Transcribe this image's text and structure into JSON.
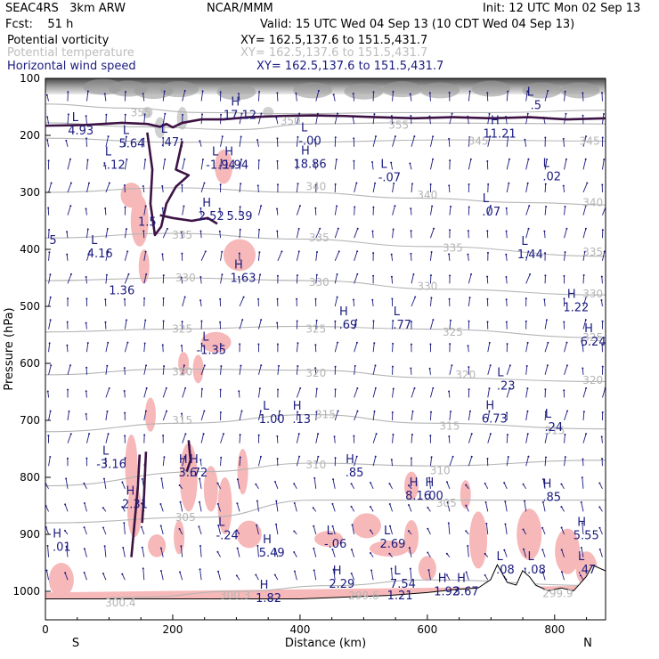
{
  "header": {
    "model": "SEAC4RS   3km ARW",
    "org": "NCAR/MMM",
    "init": "Init: 12 UTC Mon 02 Sep 13",
    "fcst": "Fcst:    51 h",
    "valid": "Valid: 15 UTC Wed 04 Sep 13 (10 CDT Wed 04 Sep 13)"
  },
  "fields": [
    {
      "name": "Potential vorticity",
      "xy": "XY= 162.5,137.6 to 151.5,431.7",
      "color": "#000000"
    },
    {
      "name": "Potential temperature",
      "xy": "XY= 162.5,137.6 to 151.5,431.7",
      "color": "#bdbdbd"
    },
    {
      "name": "Horizontal wind speed",
      "xy": "XY= 162.5,137.6 to 151.5,431.7",
      "color": "#1a1a80"
    }
  ],
  "chart_data": {
    "type": "cross-section",
    "xlabel": "Distance (km)",
    "ylabel": "Pressure (hPa)",
    "xlim": [
      0,
      880
    ],
    "ylim": [
      1050,
      100
    ],
    "x_ticks": [
      0,
      200,
      400,
      600,
      800
    ],
    "y_ticks": [
      100,
      200,
      300,
      400,
      500,
      600,
      700,
      800,
      900,
      1000
    ],
    "endpoints": {
      "left": "S",
      "right": "N"
    },
    "theta_isentropes": [
      {
        "label": "355",
        "points": [
          [
            0,
            145
          ],
          [
            120,
            152
          ],
          [
            250,
            160
          ],
          [
            400,
            162
          ],
          [
            550,
            160
          ],
          [
            700,
            160
          ],
          [
            880,
            156
          ]
        ]
      },
      {
        "label": "350",
        "points": [
          [
            0,
            178
          ],
          [
            150,
            185
          ],
          [
            300,
            190
          ],
          [
            420,
            180
          ],
          [
            560,
            178
          ],
          [
            880,
            180
          ]
        ]
      },
      {
        "label": "345",
        "points": [
          [
            0,
            205
          ],
          [
            200,
            212
          ],
          [
            400,
            212
          ],
          [
            620,
            208
          ],
          [
            880,
            210
          ]
        ]
      },
      {
        "label": "340",
        "points": [
          [
            0,
            300
          ],
          [
            200,
            292
          ],
          [
            400,
            300
          ],
          [
            580,
            310
          ],
          [
            760,
            318
          ],
          [
            880,
            322
          ]
        ]
      },
      {
        "label": "335",
        "points": [
          [
            0,
            380
          ],
          [
            200,
            372
          ],
          [
            400,
            382
          ],
          [
            600,
            395
          ],
          [
            880,
            412
          ]
        ]
      },
      {
        "label": "330",
        "points": [
          [
            0,
            455
          ],
          [
            200,
            450
          ],
          [
            420,
            455
          ],
          [
            620,
            470
          ],
          [
            880,
            480
          ]
        ]
      },
      {
        "label": "325",
        "points": [
          [
            0,
            545
          ],
          [
            200,
            540
          ],
          [
            400,
            535
          ],
          [
            600,
            540
          ],
          [
            880,
            555
          ]
        ]
      },
      {
        "label": "320",
        "points": [
          [
            0,
            620
          ],
          [
            200,
            610
          ],
          [
            420,
            612
          ],
          [
            600,
            625
          ],
          [
            880,
            632
          ]
        ]
      },
      {
        "label": "315",
        "points": [
          [
            0,
            720
          ],
          [
            220,
            705
          ],
          [
            420,
            690
          ],
          [
            600,
            705
          ],
          [
            880,
            715
          ]
        ]
      },
      {
        "label": "310",
        "points": [
          [
            0,
            815
          ],
          [
            250,
            790
          ],
          [
            420,
            775
          ],
          [
            600,
            780
          ],
          [
            880,
            770
          ]
        ]
      },
      {
        "label": "305",
        "points": [
          [
            0,
            880
          ],
          [
            250,
            870
          ],
          [
            420,
            840
          ],
          [
            620,
            840
          ],
          [
            880,
            840
          ]
        ]
      },
      {
        "label": "300",
        "points": [
          [
            0,
            1020
          ],
          [
            150,
            1010
          ],
          [
            300,
            1000
          ],
          [
            450,
            990
          ],
          [
            600,
            980
          ],
          [
            880,
            990
          ]
        ]
      }
    ],
    "theta_labels": [
      {
        "x": 150,
        "p": 160,
        "text": "355"
      },
      {
        "x": 385,
        "p": 175,
        "text": "350"
      },
      {
        "x": 555,
        "p": 182,
        "text": "355"
      },
      {
        "x": 680,
        "p": 210,
        "text": "345"
      },
      {
        "x": 855,
        "p": 210,
        "text": "345"
      },
      {
        "x": 425,
        "p": 290,
        "text": "340"
      },
      {
        "x": 600,
        "p": 305,
        "text": "340"
      },
      {
        "x": 860,
        "p": 318,
        "text": "340"
      },
      {
        "x": 215,
        "p": 375,
        "text": "335"
      },
      {
        "x": 430,
        "p": 380,
        "text": "335"
      },
      {
        "x": 640,
        "p": 398,
        "text": "335"
      },
      {
        "x": 860,
        "p": 405,
        "text": "335"
      },
      {
        "x": 220,
        "p": 450,
        "text": "330"
      },
      {
        "x": 430,
        "p": 458,
        "text": "330"
      },
      {
        "x": 600,
        "p": 465,
        "text": "330"
      },
      {
        "x": 860,
        "p": 478,
        "text": "330"
      },
      {
        "x": 215,
        "p": 540,
        "text": "325"
      },
      {
        "x": 425,
        "p": 540,
        "text": "325"
      },
      {
        "x": 640,
        "p": 545,
        "text": "325"
      },
      {
        "x": 860,
        "p": 555,
        "text": "325"
      },
      {
        "x": 215,
        "p": 615,
        "text": "320"
      },
      {
        "x": 425,
        "p": 617,
        "text": "320"
      },
      {
        "x": 660,
        "p": 620,
        "text": "320"
      },
      {
        "x": 860,
        "p": 630,
        "text": "320"
      },
      {
        "x": 215,
        "p": 700,
        "text": "315"
      },
      {
        "x": 440,
        "p": 690,
        "text": "315"
      },
      {
        "x": 635,
        "p": 710,
        "text": "315"
      },
      {
        "x": 800,
        "p": 718,
        "text": "315"
      },
      {
        "x": 425,
        "p": 778,
        "text": "310"
      },
      {
        "x": 620,
        "p": 788,
        "text": "310"
      },
      {
        "x": 220,
        "p": 870,
        "text": "305"
      },
      {
        "x": 630,
        "p": 845,
        "text": "305"
      },
      {
        "x": 118,
        "p": 1020,
        "text": "300.4"
      },
      {
        "x": 298,
        "p": 1007,
        "text": "300.3"
      },
      {
        "x": 500,
        "p": 1008,
        "text": "299.6"
      },
      {
        "x": 805,
        "p": 1004,
        "text": "299.9"
      }
    ],
    "pv_extrema": [
      {
        "x": 50,
        "p": 180,
        "kind": "L",
        "value": "4.93"
      },
      {
        "x": 130,
        "p": 202,
        "kind": "L",
        "value": "5.64"
      },
      {
        "x": 102,
        "p": 240,
        "kind": "L",
        "value": "-.12"
      },
      {
        "x": 190,
        "p": 200,
        "kind": "L",
        "value": ".47"
      },
      {
        "x": 300,
        "p": 152,
        "kind": "H",
        "value": "17.12"
      },
      {
        "x": 410,
        "p": 198,
        "kind": "L",
        "value": "-.00"
      },
      {
        "x": 410,
        "p": 238,
        "kind": "H",
        "value": "18.86"
      },
      {
        "x": 290,
        "p": 240,
        "kind": "H",
        "value": "-1.94"
      },
      {
        "x": 270,
        "p": 240,
        "kind": "L",
        "value": "-1.94"
      },
      {
        "x": 535,
        "p": 262,
        "kind": "L",
        "value": "-.07"
      },
      {
        "x": 708,
        "p": 185,
        "kind": "H",
        "value": "11.21"
      },
      {
        "x": 790,
        "p": 260,
        "kind": "L",
        "value": ".02"
      },
      {
        "x": 765,
        "p": 135,
        "kind": "L",
        "value": ".5"
      },
      {
        "x": 695,
        "p": 322,
        "kind": "L",
        "value": ".07"
      },
      {
        "x": 160,
        "p": 340,
        "kind": "",
        "value": "1.5"
      },
      {
        "x": 255,
        "p": 330,
        "kind": "H",
        "value": "2.52"
      },
      {
        "x": 305,
        "p": 330,
        "kind": "",
        "value": "5.39"
      },
      {
        "x": 12,
        "p": 372,
        "kind": "",
        "value": "5"
      },
      {
        "x": 80,
        "p": 395,
        "kind": "L",
        "value": "4.16"
      },
      {
        "x": 120,
        "p": 460,
        "kind": "",
        "value": "1.36"
      },
      {
        "x": 305,
        "p": 438,
        "kind": "H",
        "value": "1.63"
      },
      {
        "x": 756,
        "p": 397,
        "kind": "L",
        "value": "1.44"
      },
      {
        "x": 470,
        "p": 520,
        "kind": "H",
        "value": ".69"
      },
      {
        "x": 555,
        "p": 520,
        "kind": "L",
        "value": ".77"
      },
      {
        "x": 828,
        "p": 490,
        "kind": "H",
        "value": "1.22"
      },
      {
        "x": 855,
        "p": 550,
        "kind": "H",
        "value": "6.24"
      },
      {
        "x": 255,
        "p": 565,
        "kind": "L",
        "value": "-1.35"
      },
      {
        "x": 718,
        "p": 627,
        "kind": "L",
        "value": ".23"
      },
      {
        "x": 700,
        "p": 685,
        "kind": "H",
        "value": "6.73"
      },
      {
        "x": 793,
        "p": 700,
        "kind": "L",
        "value": ".24"
      },
      {
        "x": 350,
        "p": 686,
        "kind": "L",
        "value": "1.00"
      },
      {
        "x": 397,
        "p": 686,
        "kind": "H",
        "value": ".13"
      },
      {
        "x": 98,
        "p": 765,
        "kind": "L",
        "value": "-3.16"
      },
      {
        "x": 218,
        "p": 780,
        "kind": "H",
        "value": "3.6"
      },
      {
        "x": 235,
        "p": 780,
        "kind": "H",
        "value": ".72"
      },
      {
        "x": 480,
        "p": 780,
        "kind": "H",
        "value": ".85"
      },
      {
        "x": 580,
        "p": 820,
        "kind": "H",
        "value": "8.16"
      },
      {
        "x": 605,
        "p": 820,
        "kind": "H",
        "value": ".00"
      },
      {
        "x": 790,
        "p": 823,
        "kind": "H",
        "value": ".85"
      },
      {
        "x": 135,
        "p": 835,
        "kind": "H",
        "value": "2.31"
      },
      {
        "x": 280,
        "p": 890,
        "kind": "L",
        "value": "-.24"
      },
      {
        "x": 20,
        "p": 910,
        "kind": "H",
        "value": ".01"
      },
      {
        "x": 350,
        "p": 920,
        "kind": "H",
        "value": "5.49"
      },
      {
        "x": 450,
        "p": 905,
        "kind": "L",
        "value": "-.06"
      },
      {
        "x": 540,
        "p": 905,
        "kind": "L",
        "value": "2.69"
      },
      {
        "x": 844,
        "p": 890,
        "kind": "H",
        "value": "5.55"
      },
      {
        "x": 460,
        "p": 975,
        "kind": "H",
        "value": "2.29"
      },
      {
        "x": 556,
        "p": 975,
        "kind": "L",
        "value": "7.54"
      },
      {
        "x": 557,
        "p": 995,
        "kind": "",
        "value": "1.21"
      },
      {
        "x": 625,
        "p": 988,
        "kind": "H",
        "value": "1.92"
      },
      {
        "x": 655,
        "p": 988,
        "kind": "H",
        "value": "3.67"
      },
      {
        "x": 717,
        "p": 950,
        "kind": "L",
        "value": ".08"
      },
      {
        "x": 766,
        "p": 950,
        "kind": "L",
        "value": ".08"
      },
      {
        "x": 845,
        "p": 950,
        "kind": "L",
        "value": ".47"
      },
      {
        "x": 345,
        "p": 1000,
        "kind": "H",
        "value": "1.82"
      }
    ],
    "colors": {
      "pv_contour": "#3d1245",
      "pv_shade": "#f6b8b8",
      "theta": "#b5b5b5",
      "wind": "#1a1a80",
      "terrain": "#000000"
    }
  }
}
